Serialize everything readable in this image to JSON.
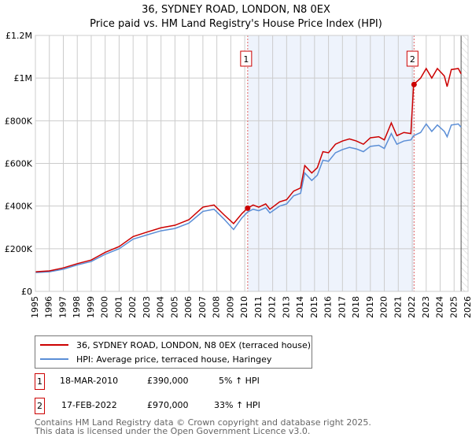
{
  "chart_data": {
    "type": "line",
    "title": "36, SYDNEY ROAD, LONDON, N8 0EX",
    "subtitle": "Price paid vs. HM Land Registry's House Price Index (HPI)",
    "xlim": [
      1995,
      2026
    ],
    "ylim": [
      0,
      1200000
    ],
    "x_ticks": [
      "1995",
      "1996",
      "1997",
      "1998",
      "1999",
      "2000",
      "2001",
      "2002",
      "2003",
      "2004",
      "2005",
      "2006",
      "2007",
      "2008",
      "2009",
      "2010",
      "2011",
      "2012",
      "2013",
      "2014",
      "2015",
      "2016",
      "2017",
      "2018",
      "2019",
      "2020",
      "2021",
      "2022",
      "2023",
      "2024",
      "2025",
      "2026"
    ],
    "y_ticks": [
      {
        "v": 0,
        "label": "£0"
      },
      {
        "v": 200000,
        "label": "£200K"
      },
      {
        "v": 400000,
        "label": "£400K"
      },
      {
        "v": 600000,
        "label": "£600K"
      },
      {
        "v": 800000,
        "label": "£800K"
      },
      {
        "v": 1000000,
        "label": "£1M"
      },
      {
        "v": 1200000,
        "label": "£1.2M"
      }
    ],
    "grid": true,
    "series": [
      {
        "name": "36, SYDNEY ROAD, LONDON, N8 0EX (terraced house)",
        "color": "#cc0000",
        "points": [
          [
            1995,
            92
          ],
          [
            1996,
            96
          ],
          [
            1997,
            110
          ],
          [
            1998,
            130
          ],
          [
            1999,
            147
          ],
          [
            2000,
            183
          ],
          [
            2001,
            210
          ],
          [
            2002,
            257
          ],
          [
            2003,
            278
          ],
          [
            2004,
            298
          ],
          [
            2005,
            310
          ],
          [
            2006,
            336
          ],
          [
            2007,
            395
          ],
          [
            2007.8,
            405
          ],
          [
            2008.5,
            360
          ],
          [
            2009.2,
            318
          ],
          [
            2009.8,
            365
          ],
          [
            2010.2,
            390
          ],
          [
            2010.6,
            405
          ],
          [
            2011,
            395
          ],
          [
            2011.5,
            410
          ],
          [
            2011.8,
            385
          ],
          [
            2012.5,
            420
          ],
          [
            2013,
            430
          ],
          [
            2013.5,
            470
          ],
          [
            2014,
            485
          ],
          [
            2014.3,
            590
          ],
          [
            2014.8,
            555
          ],
          [
            2015.2,
            580
          ],
          [
            2015.6,
            655
          ],
          [
            2016,
            650
          ],
          [
            2016.5,
            690
          ],
          [
            2017,
            705
          ],
          [
            2017.5,
            715
          ],
          [
            2018,
            705
          ],
          [
            2018.5,
            690
          ],
          [
            2019,
            720
          ],
          [
            2019.6,
            725
          ],
          [
            2020,
            710
          ],
          [
            2020.5,
            790
          ],
          [
            2020.9,
            730
          ],
          [
            2021.4,
            745
          ],
          [
            2021.9,
            740
          ],
          [
            2022.1,
            970
          ],
          [
            2022.6,
            1000
          ],
          [
            2023,
            1045
          ],
          [
            2023.4,
            1000
          ],
          [
            2023.8,
            1045
          ],
          [
            2024.3,
            1010
          ],
          [
            2024.5,
            960
          ],
          [
            2024.8,
            1040
          ],
          [
            2025.3,
            1045
          ],
          [
            2025.5,
            1020
          ]
        ]
      },
      {
        "name": "HPI: Average price, terraced house, Haringey",
        "color": "#5b8ed6",
        "points": [
          [
            1995,
            88
          ],
          [
            1996,
            92
          ],
          [
            1997,
            104
          ],
          [
            1998,
            124
          ],
          [
            1999,
            140
          ],
          [
            2000,
            174
          ],
          [
            2001,
            200
          ],
          [
            2002,
            245
          ],
          [
            2003,
            265
          ],
          [
            2004,
            284
          ],
          [
            2005,
            295
          ],
          [
            2006,
            320
          ],
          [
            2007,
            375
          ],
          [
            2007.8,
            385
          ],
          [
            2008.5,
            340
          ],
          [
            2009.2,
            290
          ],
          [
            2009.8,
            345
          ],
          [
            2010.2,
            372
          ],
          [
            2010.6,
            385
          ],
          [
            2011,
            378
          ],
          [
            2011.5,
            392
          ],
          [
            2011.8,
            368
          ],
          [
            2012.5,
            400
          ],
          [
            2013,
            410
          ],
          [
            2013.5,
            448
          ],
          [
            2014,
            460
          ],
          [
            2014.3,
            555
          ],
          [
            2014.8,
            520
          ],
          [
            2015.2,
            545
          ],
          [
            2015.6,
            615
          ],
          [
            2016,
            610
          ],
          [
            2016.5,
            650
          ],
          [
            2017,
            665
          ],
          [
            2017.5,
            675
          ],
          [
            2018,
            668
          ],
          [
            2018.5,
            655
          ],
          [
            2019,
            680
          ],
          [
            2019.6,
            685
          ],
          [
            2020,
            670
          ],
          [
            2020.5,
            740
          ],
          [
            2020.9,
            690
          ],
          [
            2021.4,
            705
          ],
          [
            2021.9,
            710
          ],
          [
            2022.1,
            730
          ],
          [
            2022.6,
            745
          ],
          [
            2023,
            785
          ],
          [
            2023.4,
            750
          ],
          [
            2023.8,
            780
          ],
          [
            2024.3,
            750
          ],
          [
            2024.5,
            725
          ],
          [
            2024.8,
            780
          ],
          [
            2025.3,
            785
          ],
          [
            2025.5,
            770
          ]
        ]
      }
    ],
    "annotations": [
      {
        "id": "1",
        "x": 2010.21,
        "y": 390000
      },
      {
        "id": "2",
        "x": 2022.13,
        "y": 970000
      }
    ],
    "shaded_range": [
      2010.21,
      2022.13
    ],
    "hatched_from": 2025.5,
    "legend_placement": "below"
  },
  "transactions": [
    {
      "num": "1",
      "date": "18-MAR-2010",
      "price": "£390,000",
      "hpi": "5% ↑ HPI"
    },
    {
      "num": "2",
      "date": "17-FEB-2022",
      "price": "£970,000",
      "hpi": "33% ↑ HPI"
    }
  ],
  "footer": [
    "Contains HM Land Registry data © Crown copyright and database right 2025.",
    "This data is licensed under the Open Government Licence v3.0."
  ]
}
